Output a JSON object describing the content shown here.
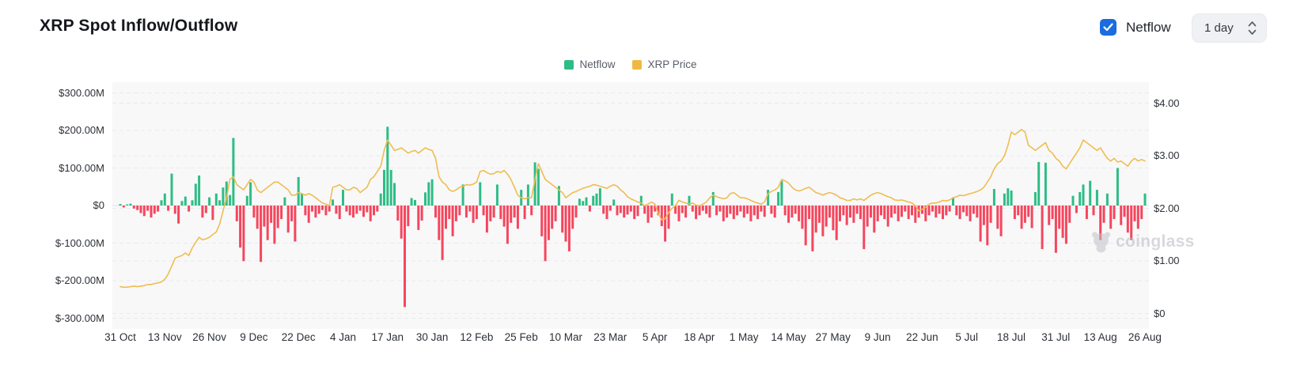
{
  "header": {
    "title": "XRP Spot Inflow/Outflow",
    "netflow_toggle": {
      "label": "Netflow",
      "checked": true,
      "color": "#1a6ce0"
    },
    "interval_select": {
      "value": "1 day"
    }
  },
  "watermark": {
    "text": "coinglass"
  },
  "colors": {
    "bar_up": "#2EBD85",
    "bar_down": "#F5465D",
    "price_line": "#EFBD4F",
    "accent_blue": "#1a6ce0"
  },
  "chart_data": {
    "type": "bar",
    "subtype": "mixed-bar-line",
    "title": "XRP Spot Inflow/Outflow",
    "legend_position": "top-center",
    "grid": "dashed-horizontal",
    "x": {
      "points": 300,
      "tick_every_days": 13,
      "tick_labels": [
        "31 Oct",
        "13 Nov",
        "26 Nov",
        "9 Dec",
        "22 Dec",
        "4 Jan",
        "17 Jan",
        "30 Jan",
        "12 Feb",
        "25 Feb",
        "10 Mar",
        "23 Mar",
        "5 Apr",
        "18 Apr",
        "1 May",
        "14 May",
        "27 May",
        "9 Jun",
        "22 Jun",
        "5 Jul",
        "18 Jul",
        "31 Jul",
        "13 Aug",
        "26 Aug"
      ]
    },
    "y_left": {
      "unit": "$M",
      "min": -300,
      "max": 300,
      "labels": [
        "$300.00M",
        "$200.00M",
        "$100.00M",
        "$0",
        "$-100.00M",
        "$-200.00M",
        "$-300.00M"
      ]
    },
    "y_right": {
      "unit": "$",
      "min": 0,
      "max": 4,
      "labels": [
        "$4.00",
        "$3.00",
        "$2.00",
        "$1.00",
        "$0"
      ]
    },
    "series": [
      {
        "name": "Netflow",
        "type": "bar",
        "axis": "left",
        "unit": "$M",
        "color": "#2EBD85",
        "color_negative": "#F5465D",
        "values": [
          4,
          -5,
          3,
          5,
          -8,
          -12,
          -20,
          -28,
          -14,
          -32,
          -22,
          -16,
          14,
          32,
          -14,
          85,
          -22,
          -48,
          12,
          24,
          -16,
          14,
          58,
          80,
          -32,
          -20,
          22,
          -38,
          32,
          14,
          48,
          64,
          28,
          180,
          -42,
          -112,
          -148,
          26,
          62,
          -32,
          -62,
          -150,
          -56,
          -92,
          -46,
          -102,
          -60,
          -36,
          22,
          -72,
          -42,
          -96,
          76,
          32,
          -26,
          -46,
          -16,
          -32,
          -22,
          -12,
          -26,
          -16,
          16,
          -22,
          -36,
          42,
          -16,
          -26,
          -32,
          -22,
          -14,
          -30,
          -18,
          -42,
          -26,
          -16,
          32,
          95,
          210,
          95,
          60,
          -40,
          -88,
          -270,
          -55,
          20,
          15,
          -65,
          -40,
          35,
          62,
          70,
          -32,
          -92,
          -145,
          -62,
          -36,
          -82,
          -42,
          -26,
          56,
          -32,
          -16,
          -46,
          -36,
          62,
          -26,
          -72,
          -42,
          -32,
          56,
          -36,
          -56,
          -102,
          -46,
          -32,
          -62,
          42,
          -36,
          56,
          -26,
          115,
          98,
          -82,
          -148,
          -92,
          -62,
          -42,
          52,
          -72,
          -96,
          -122,
          -62,
          -32,
          18,
          12,
          22,
          -16,
          26,
          32,
          46,
          -22,
          -36,
          -14,
          16,
          -26,
          -20,
          -32,
          -24,
          -16,
          -36,
          -28,
          26,
          -22,
          -46,
          -32,
          -16,
          -26,
          -55,
          -96,
          -62,
          32,
          -22,
          -42,
          -20,
          -32,
          26,
          -16,
          -36,
          -26,
          -14,
          -22,
          -32,
          36,
          -26,
          -16,
          -42,
          -32,
          -22,
          -36,
          -26,
          -16,
          -32,
          -22,
          -42,
          -26,
          -36,
          -16,
          -30,
          42,
          -22,
          -32,
          36,
          66,
          -26,
          -46,
          -32,
          -22,
          -42,
          -62,
          -106,
          -36,
          -122,
          -72,
          -46,
          -82,
          -56,
          -32,
          -66,
          -92,
          -42,
          -26,
          -52,
          -32,
          -46,
          -22,
          -36,
          -116,
          -56,
          -32,
          -72,
          -42,
          -26,
          -36,
          -56,
          -32,
          -22,
          -42,
          -30,
          -16,
          -36,
          -26,
          -46,
          -32,
          -22,
          -42,
          -26,
          -16,
          -32,
          -22,
          -36,
          -26,
          -16,
          22,
          -26,
          -36,
          -18,
          -28,
          -42,
          -22,
          -32,
          -96,
          -52,
          -106,
          -46,
          44,
          -62,
          -82,
          32,
          46,
          40,
          -36,
          -26,
          -62,
          -46,
          -30,
          -60,
          36,
          116,
          -116,
          114,
          -52,
          -36,
          -126,
          -62,
          -86,
          -102,
          -46,
          26,
          -20,
          36,
          56,
          -36,
          66,
          -26,
          42,
          -92,
          -46,
          32,
          -62,
          -36,
          100,
          -52,
          -30,
          -72,
          -92,
          -42,
          -62,
          -36,
          32
        ]
      },
      {
        "name": "XRP Price",
        "type": "line",
        "axis": "right",
        "unit": "$",
        "color": "#EFBD4F",
        "values": [
          0.51,
          0.5,
          0.5,
          0.51,
          0.52,
          0.51,
          0.52,
          0.53,
          0.55,
          0.55,
          0.57,
          0.58,
          0.6,
          0.65,
          0.75,
          0.9,
          1.05,
          1.08,
          1.1,
          1.15,
          1.1,
          1.25,
          1.35,
          1.45,
          1.4,
          1.42,
          1.45,
          1.5,
          1.55,
          1.7,
          1.95,
          2.2,
          2.55,
          2.6,
          2.45,
          2.4,
          2.35,
          2.45,
          2.55,
          2.5,
          2.35,
          2.3,
          2.35,
          2.4,
          2.45,
          2.5,
          2.5,
          2.45,
          2.4,
          2.35,
          2.25,
          2.25,
          2.3,
          2.28,
          2.25,
          2.28,
          2.25,
          2.2,
          2.15,
          2.1,
          2.08,
          2.05,
          2.4,
          2.42,
          2.45,
          2.4,
          2.35,
          2.35,
          2.4,
          2.38,
          2.3,
          2.35,
          2.4,
          2.55,
          2.6,
          2.7,
          2.8,
          3.1,
          3.3,
          3.2,
          3.1,
          3.12,
          3.15,
          3.1,
          3.05,
          3.08,
          3.1,
          3.05,
          3.1,
          3.15,
          3.12,
          3.1,
          2.95,
          2.6,
          2.5,
          2.45,
          2.35,
          2.32,
          2.35,
          2.4,
          2.42,
          2.45,
          2.44,
          2.46,
          2.5,
          2.7,
          2.72,
          2.68,
          2.65,
          2.66,
          2.7,
          2.68,
          2.72,
          2.65,
          2.55,
          2.4,
          2.25,
          2.2,
          2.18,
          2.2,
          2.2,
          2.55,
          2.85,
          2.7,
          2.55,
          2.5,
          2.45,
          2.4,
          2.35,
          2.3,
          2.2,
          2.25,
          2.3,
          2.32,
          2.35,
          2.38,
          2.4,
          2.42,
          2.45,
          2.44,
          2.42,
          2.4,
          2.38,
          2.42,
          2.45,
          2.42,
          2.35,
          2.3,
          2.22,
          2.18,
          2.15,
          2.12,
          2.1,
          2.05,
          2.08,
          2.12,
          2.08,
          1.9,
          1.78,
          1.8,
          1.92,
          2.0,
          2.05,
          2.15,
          2.12,
          2.1,
          2.08,
          2.1,
          2.06,
          2.05,
          2.08,
          2.12,
          2.2,
          2.25,
          2.22,
          2.2,
          2.18,
          2.2,
          2.28,
          2.3,
          2.25,
          2.2,
          2.2,
          2.18,
          2.15,
          2.12,
          2.1,
          2.08,
          2.12,
          2.28,
          2.32,
          2.35,
          2.4,
          2.55,
          2.52,
          2.48,
          2.4,
          2.35,
          2.33,
          2.35,
          2.38,
          2.4,
          2.35,
          2.3,
          2.28,
          2.25,
          2.28,
          2.3,
          2.28,
          2.25,
          2.2,
          2.18,
          2.15,
          2.15,
          2.18,
          2.16,
          2.18,
          2.15,
          2.2,
          2.25,
          2.28,
          2.3,
          2.28,
          2.25,
          2.22,
          2.2,
          2.16,
          2.15,
          2.16,
          2.14,
          2.12,
          2.1,
          2.05,
          1.95,
          1.98,
          2.02,
          2.08,
          2.1,
          2.1,
          2.12,
          2.15,
          2.14,
          2.16,
          2.2,
          2.22,
          2.25,
          2.24,
          2.26,
          2.28,
          2.3,
          2.32,
          2.35,
          2.4,
          2.5,
          2.6,
          2.75,
          2.85,
          2.9,
          3.0,
          3.2,
          3.45,
          3.4,
          3.45,
          3.5,
          3.45,
          3.2,
          3.15,
          3.1,
          3.15,
          3.2,
          3.25,
          3.1,
          3.05,
          2.95,
          2.9,
          2.8,
          2.75,
          2.85,
          2.95,
          3.05,
          3.15,
          3.3,
          3.25,
          3.2,
          3.15,
          3.1,
          3.15,
          3.05,
          2.95,
          2.9,
          2.95,
          2.88,
          2.9,
          2.85,
          2.8,
          2.9,
          2.95,
          2.9,
          2.93,
          2.9
        ]
      }
    ]
  }
}
